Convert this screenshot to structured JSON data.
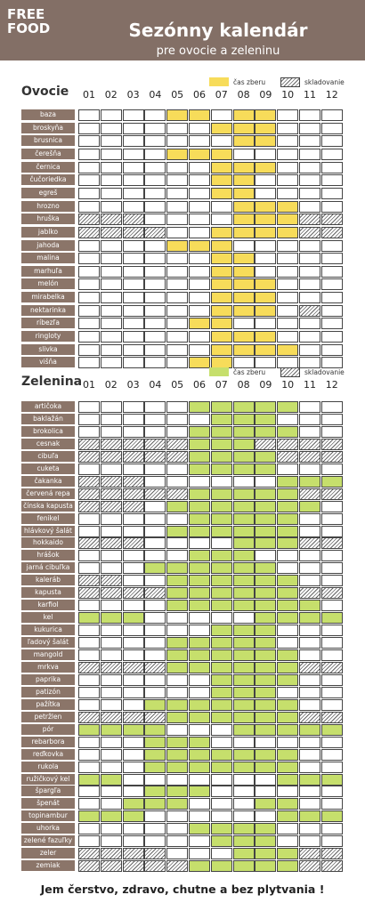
{
  "header": {
    "logo": [
      "FREE",
      "FOOD"
    ],
    "title": "Sezónny kalendár",
    "subtitle": "pre ovocie a zeleninu"
  },
  "months": [
    "01",
    "02",
    "03",
    "04",
    "05",
    "06",
    "07",
    "08",
    "09",
    "10",
    "11",
    "12"
  ],
  "fruit": {
    "heading": "Ovocie",
    "legend": [
      "čas zberu",
      "skladovanie"
    ],
    "items": [
      {
        "name": "baza",
        "months": [
          0,
          0,
          0,
          0,
          1,
          1,
          0,
          1,
          1,
          0,
          0,
          0
        ]
      },
      {
        "name": "broskyňa",
        "months": [
          0,
          0,
          0,
          0,
          0,
          0,
          1,
          1,
          1,
          0,
          0,
          0
        ]
      },
      {
        "name": "brusnica",
        "months": [
          0,
          0,
          0,
          0,
          0,
          0,
          0,
          1,
          1,
          0,
          0,
          0
        ]
      },
      {
        "name": "čerešňa",
        "months": [
          0,
          0,
          0,
          0,
          1,
          1,
          1,
          0,
          0,
          0,
          0,
          0
        ]
      },
      {
        "name": "černica",
        "months": [
          0,
          0,
          0,
          0,
          0,
          0,
          1,
          1,
          1,
          0,
          0,
          0
        ]
      },
      {
        "name": "čučoriedka",
        "months": [
          0,
          0,
          0,
          0,
          0,
          0,
          1,
          1,
          0,
          0,
          0,
          0
        ]
      },
      {
        "name": "egreš",
        "months": [
          0,
          0,
          0,
          0,
          0,
          0,
          1,
          1,
          0,
          0,
          0,
          0
        ]
      },
      {
        "name": "hrozno",
        "months": [
          0,
          0,
          0,
          0,
          0,
          0,
          0,
          1,
          1,
          1,
          0,
          0
        ]
      },
      {
        "name": "hruška",
        "months": [
          2,
          2,
          2,
          0,
          0,
          0,
          0,
          1,
          1,
          1,
          2,
          2
        ]
      },
      {
        "name": "jablko",
        "months": [
          2,
          2,
          2,
          2,
          0,
          0,
          1,
          1,
          1,
          1,
          2,
          2
        ]
      },
      {
        "name": "jahoda",
        "months": [
          0,
          0,
          0,
          0,
          1,
          1,
          1,
          0,
          0,
          0,
          0,
          0
        ]
      },
      {
        "name": "malina",
        "months": [
          0,
          0,
          0,
          0,
          0,
          0,
          1,
          1,
          0,
          0,
          0,
          0
        ]
      },
      {
        "name": "marhuľa",
        "months": [
          0,
          0,
          0,
          0,
          0,
          0,
          1,
          1,
          0,
          0,
          0,
          0
        ]
      },
      {
        "name": "melón",
        "months": [
          0,
          0,
          0,
          0,
          0,
          0,
          1,
          1,
          1,
          0,
          0,
          0
        ]
      },
      {
        "name": "mirabelka",
        "months": [
          0,
          0,
          0,
          0,
          0,
          0,
          1,
          1,
          1,
          0,
          0,
          0
        ]
      },
      {
        "name": "nektarinka",
        "months": [
          0,
          0,
          0,
          0,
          0,
          0,
          1,
          1,
          1,
          0,
          2,
          0
        ]
      },
      {
        "name": "ríbezľa",
        "months": [
          0,
          0,
          0,
          0,
          0,
          1,
          1,
          0,
          0,
          0,
          0,
          0
        ]
      },
      {
        "name": "ringloty",
        "months": [
          0,
          0,
          0,
          0,
          0,
          0,
          1,
          1,
          1,
          0,
          0,
          0
        ]
      },
      {
        "name": "slivka",
        "months": [
          0,
          0,
          0,
          0,
          0,
          0,
          1,
          1,
          1,
          1,
          0,
          0
        ]
      },
      {
        "name": "višňa",
        "months": [
          0,
          0,
          0,
          0,
          0,
          1,
          1,
          0,
          0,
          0,
          0,
          0
        ]
      }
    ]
  },
  "vegetables": {
    "heading": "Zelenina",
    "legend": [
      "čas zberu",
      "skladovanie"
    ],
    "items": [
      {
        "name": "artičoka",
        "months": [
          0,
          0,
          0,
          0,
          0,
          1,
          1,
          1,
          1,
          1,
          0,
          0
        ]
      },
      {
        "name": "baklažán",
        "months": [
          0,
          0,
          0,
          0,
          0,
          0,
          1,
          1,
          1,
          0,
          0,
          0
        ]
      },
      {
        "name": "brokolica",
        "months": [
          0,
          0,
          0,
          0,
          0,
          1,
          1,
          1,
          1,
          1,
          0,
          0
        ]
      },
      {
        "name": "cesnak",
        "months": [
          2,
          2,
          2,
          2,
          2,
          1,
          1,
          1,
          2,
          2,
          2,
          2
        ]
      },
      {
        "name": "cibuľa",
        "months": [
          2,
          2,
          2,
          2,
          2,
          1,
          1,
          1,
          1,
          2,
          2,
          2
        ]
      },
      {
        "name": "cuketa",
        "months": [
          0,
          0,
          0,
          0,
          0,
          1,
          1,
          1,
          1,
          0,
          0,
          0
        ]
      },
      {
        "name": "čakanka",
        "months": [
          2,
          2,
          2,
          0,
          0,
          0,
          0,
          0,
          0,
          1,
          1,
          1
        ]
      },
      {
        "name": "červená repa",
        "months": [
          2,
          2,
          2,
          2,
          2,
          1,
          1,
          1,
          1,
          1,
          2,
          2
        ]
      },
      {
        "name": "čínska kapusta",
        "months": [
          2,
          2,
          2,
          0,
          1,
          1,
          1,
          1,
          1,
          1,
          1,
          0
        ]
      },
      {
        "name": "fenikel",
        "months": [
          0,
          0,
          0,
          0,
          0,
          1,
          1,
          1,
          1,
          1,
          0,
          0
        ]
      },
      {
        "name": "hlávkový šalát",
        "months": [
          0,
          0,
          0,
          0,
          1,
          1,
          1,
          1,
          1,
          1,
          0,
          0
        ]
      },
      {
        "name": "hokkaido",
        "months": [
          2,
          2,
          2,
          0,
          0,
          0,
          0,
          1,
          1,
          1,
          2,
          2
        ]
      },
      {
        "name": "hrášok",
        "months": [
          0,
          0,
          0,
          0,
          0,
          1,
          1,
          1,
          0,
          0,
          0,
          0
        ]
      },
      {
        "name": "jarná cibuľka",
        "months": [
          0,
          0,
          0,
          1,
          1,
          1,
          1,
          1,
          1,
          0,
          0,
          0
        ]
      },
      {
        "name": "kaleráb",
        "months": [
          2,
          2,
          0,
          0,
          1,
          1,
          1,
          1,
          1,
          1,
          0,
          0
        ]
      },
      {
        "name": "kapusta",
        "months": [
          2,
          2,
          2,
          2,
          1,
          1,
          1,
          1,
          1,
          1,
          2,
          2
        ]
      },
      {
        "name": "karfiol",
        "months": [
          0,
          0,
          0,
          0,
          1,
          1,
          1,
          1,
          1,
          1,
          1,
          0
        ]
      },
      {
        "name": "kel",
        "months": [
          1,
          1,
          1,
          0,
          0,
          0,
          0,
          0,
          1,
          1,
          1,
          1
        ]
      },
      {
        "name": "kukurica",
        "months": [
          0,
          0,
          0,
          0,
          0,
          0,
          1,
          1,
          1,
          0,
          0,
          0
        ]
      },
      {
        "name": "ľadový šalát",
        "months": [
          0,
          0,
          0,
          0,
          1,
          1,
          1,
          1,
          1,
          0,
          0,
          0
        ]
      },
      {
        "name": "mangold",
        "months": [
          0,
          0,
          0,
          0,
          1,
          1,
          1,
          1,
          1,
          1,
          0,
          0
        ]
      },
      {
        "name": "mrkva",
        "months": [
          2,
          2,
          2,
          2,
          1,
          1,
          1,
          1,
          1,
          1,
          2,
          2
        ]
      },
      {
        "name": "paprika",
        "months": [
          0,
          0,
          0,
          0,
          0,
          0,
          1,
          1,
          1,
          1,
          0,
          0
        ]
      },
      {
        "name": "patizón",
        "months": [
          0,
          0,
          0,
          0,
          0,
          0,
          1,
          1,
          1,
          0,
          0,
          0
        ]
      },
      {
        "name": "pažítka",
        "months": [
          0,
          0,
          0,
          1,
          1,
          1,
          1,
          1,
          1,
          1,
          0,
          0
        ]
      },
      {
        "name": "petržlen",
        "months": [
          2,
          2,
          2,
          2,
          1,
          1,
          1,
          1,
          1,
          1,
          2,
          2
        ]
      },
      {
        "name": "pór",
        "months": [
          1,
          1,
          1,
          1,
          0,
          0,
          0,
          1,
          1,
          1,
          1,
          1
        ]
      },
      {
        "name": "rebarbora",
        "months": [
          0,
          0,
          0,
          1,
          1,
          1,
          0,
          0,
          0,
          0,
          0,
          0
        ]
      },
      {
        "name": "reďkovka",
        "months": [
          0,
          0,
          0,
          1,
          1,
          1,
          1,
          1,
          1,
          1,
          0,
          0
        ]
      },
      {
        "name": "rukola",
        "months": [
          0,
          0,
          0,
          1,
          1,
          1,
          1,
          1,
          1,
          1,
          0,
          0
        ]
      },
      {
        "name": "ružičkový kel",
        "months": [
          1,
          1,
          0,
          0,
          0,
          0,
          0,
          0,
          0,
          1,
          1,
          1
        ]
      },
      {
        "name": "špargľa",
        "months": [
          0,
          0,
          0,
          1,
          1,
          1,
          0,
          0,
          0,
          0,
          0,
          0
        ]
      },
      {
        "name": "špenát",
        "months": [
          0,
          0,
          1,
          1,
          1,
          0,
          0,
          0,
          1,
          1,
          0,
          0
        ]
      },
      {
        "name": "topinambur",
        "months": [
          1,
          1,
          1,
          0,
          0,
          0,
          0,
          0,
          0,
          1,
          1,
          1
        ]
      },
      {
        "name": "uhorka",
        "months": [
          0,
          0,
          0,
          0,
          0,
          1,
          1,
          1,
          1,
          0,
          0,
          0
        ]
      },
      {
        "name": "zelené fazuľky",
        "months": [
          0,
          0,
          0,
          0,
          0,
          0,
          1,
          1,
          1,
          0,
          0,
          0
        ]
      },
      {
        "name": "zeler",
        "months": [
          2,
          2,
          2,
          2,
          0,
          0,
          0,
          1,
          1,
          1,
          2,
          2
        ]
      },
      {
        "name": "zemiak",
        "months": [
          2,
          2,
          2,
          2,
          2,
          1,
          1,
          1,
          1,
          1,
          2,
          2
        ]
      }
    ]
  },
  "footer": "Jem čerstvo, zdravo, chutne a bez plytvania !"
}
